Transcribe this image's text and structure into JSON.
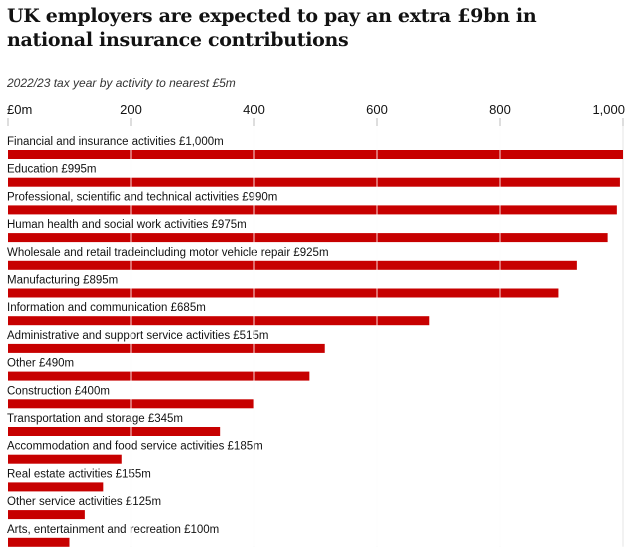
{
  "title": "UK employers are expected to pay an extra £9bn in national insurance contributions",
  "subtitle": "2022/23 tax year by activity to nearest £5m",
  "colors": {
    "bar": "#c70000",
    "text": "#121212",
    "axis": "#bdbdbd"
  },
  "chart_data": {
    "type": "bar",
    "orientation": "horizontal",
    "title": "UK employers are expected to pay an extra £9bn in national insurance contributions",
    "subtitle": "2022/23 tax year by activity to nearest £5m",
    "xlim": [
      0,
      1000
    ],
    "ticks": [
      0,
      200,
      400,
      600,
      800,
      1000
    ],
    "tick_labels": [
      "£0m",
      "200",
      "400",
      "600",
      "800",
      "1,000"
    ],
    "grid": true,
    "categories": [
      "Financial and insurance activities £1,000m",
      "Education £995m",
      "Professional, scientific and technical activities £990m",
      "Human health and social work activities £975m",
      "Wholesale and retail tradeincluding motor vehicle repair £925m",
      "Manufacturing £895m",
      "Information and communication £685m",
      "Administrative and support service activities £515m",
      "Other £490m",
      "Construction £400m",
      "Transportation and storage £345m",
      "Accommodation and food service activities £185m",
      "Real estate activities £155m",
      "Other service activities £125m",
      "Arts, entertainment and recreation £100m"
    ],
    "values": [
      1000,
      995,
      990,
      975,
      925,
      895,
      685,
      515,
      490,
      400,
      345,
      185,
      155,
      125,
      100
    ]
  }
}
